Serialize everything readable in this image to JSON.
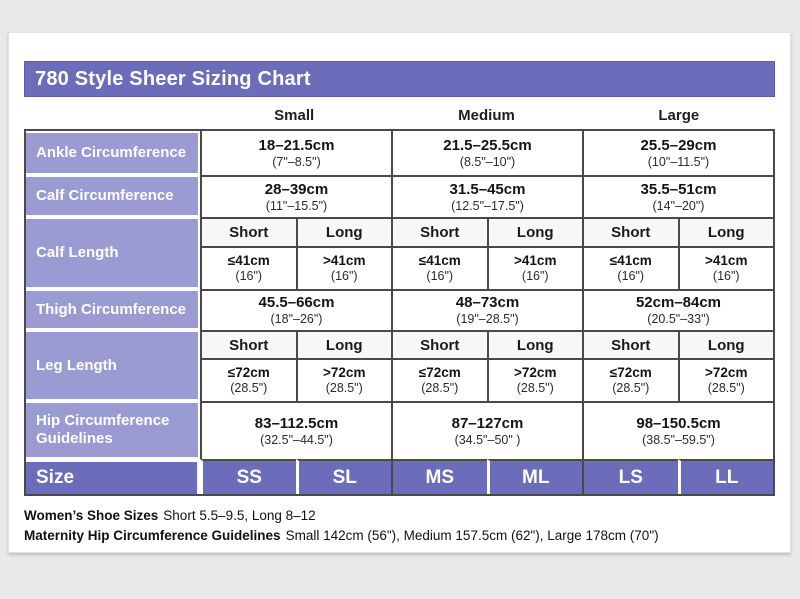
{
  "title": "780 Style Sheer Sizing Chart",
  "colors": {
    "title_bar": "#6b6cba",
    "row_label": "#9b9bd3",
    "size_row": "#6b6cba",
    "table_border": "#4a4a4a",
    "page_background": "#e9e9e9"
  },
  "table": {
    "col_headers": [
      "Small",
      "Medium",
      "Large"
    ],
    "ankle": {
      "label": "Ankle Circumference",
      "cells": [
        {
          "cm": "18–21.5cm",
          "in": "(7\"–8.5\")"
        },
        {
          "cm": "21.5–25.5cm",
          "in": "(8.5\"–10\")"
        },
        {
          "cm": "25.5–29cm",
          "in": "(10\"–11.5\")"
        }
      ]
    },
    "calf_circumference": {
      "label": "Calf Circumference",
      "cells": [
        {
          "cm": "28–39cm",
          "in": "(11\"–15.5\")"
        },
        {
          "cm": "31.5–45cm",
          "in": "(12.5\"–17.5\")"
        },
        {
          "cm": "35.5–51cm",
          "in": "(14\"–20\")"
        }
      ]
    },
    "calf_length": {
      "label": "Calf Length",
      "subheaders": [
        "Short",
        "Long",
        "Short",
        "Long",
        "Short",
        "Long"
      ],
      "cells": [
        {
          "cm": "≤41cm",
          "in": "(16\")"
        },
        {
          "cm": ">41cm",
          "in": "(16\")"
        },
        {
          "cm": "≤41cm",
          "in": "(16\")"
        },
        {
          "cm": ">41cm",
          "in": "(16\")"
        },
        {
          "cm": "≤41cm",
          "in": "(16\")"
        },
        {
          "cm": ">41cm",
          "in": "(16\")"
        }
      ]
    },
    "thigh": {
      "label": "Thigh Circumference",
      "cells": [
        {
          "cm": "45.5–66cm",
          "in": "(18\"–26\")"
        },
        {
          "cm": "48–73cm",
          "in": "(19\"–28.5\")"
        },
        {
          "cm": "52cm–84cm",
          "in": "(20.5\"–33\")"
        }
      ]
    },
    "leg_length": {
      "label": "Leg Length",
      "subheaders": [
        "Short",
        "Long",
        "Short",
        "Long",
        "Short",
        "Long"
      ],
      "cells": [
        {
          "cm": "≤72cm",
          "in": "(28.5\")"
        },
        {
          "cm": ">72cm",
          "in": "(28.5\")"
        },
        {
          "cm": "≤72cm",
          "in": "(28.5\")"
        },
        {
          "cm": ">72cm",
          "in": "(28.5\")"
        },
        {
          "cm": "≤72cm",
          "in": "(28.5\")"
        },
        {
          "cm": ">72cm",
          "in": "(28.5\")"
        }
      ]
    },
    "hip": {
      "label_line1": "Hip Circumference",
      "label_line2": "Guidelines",
      "cells": [
        {
          "cm": "83–112.5cm",
          "in": "(32.5\"–44.5\")"
        },
        {
          "cm": "87–127cm",
          "in": "(34.5\"–50\" )"
        },
        {
          "cm": "98–150.5cm",
          "in": "(38.5\"–59.5\")"
        }
      ]
    },
    "size_row": {
      "label": "Size",
      "sizes": [
        "SS",
        "SL",
        "MS",
        "ML",
        "LS",
        "LL"
      ]
    }
  },
  "footnotes": [
    {
      "bold": "Women’s Shoe Sizes",
      "rest": "Short 5.5–9.5, Long 8–12"
    },
    {
      "bold": "Maternity Hip Circumference Guidelines",
      "rest": "Small 142cm (56\"), Medium 157.5cm (62\"), Large 178cm (70\")"
    }
  ]
}
